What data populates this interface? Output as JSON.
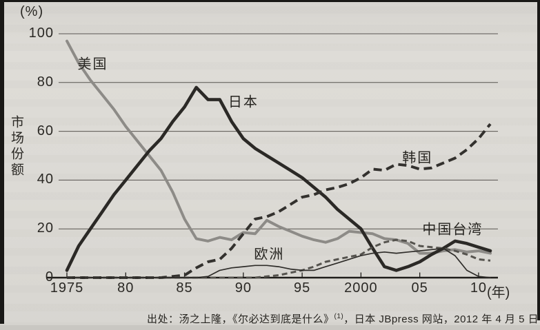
{
  "page": {
    "caption": {
      "prefix": "出处：汤之上隆，《尔必达到底是什么》",
      "superscript": "(1)",
      "suffix": "，日本 JBpress 网站，2012 年 4 月 5 日"
    }
  },
  "chart_data": {
    "type": "line",
    "title": "",
    "ylabel": "市场份额",
    "y_unit_label": "(%)",
    "x_unit_label": "(年)",
    "ylim": [
      0,
      100
    ],
    "xlim": [
      1975,
      2011
    ],
    "grid": "horizontal",
    "legend_position": "inline-labels-on-lines",
    "yticks": [
      0,
      20,
      40,
      60,
      80,
      100
    ],
    "xticks": [
      {
        "year": 1975,
        "label": "1975"
      },
      {
        "year": 1980,
        "label": "80"
      },
      {
        "year": 1985,
        "label": "85"
      },
      {
        "year": 1990,
        "label": "90"
      },
      {
        "year": 1995,
        "label": "95"
      },
      {
        "year": 2000,
        "label": "2000"
      },
      {
        "year": 2005,
        "label": "05"
      },
      {
        "year": 2010,
        "label": "10"
      }
    ],
    "x": [
      1975,
      1976,
      1977,
      1978,
      1979,
      1980,
      1981,
      1982,
      1983,
      1984,
      1985,
      1986,
      1987,
      1988,
      1989,
      1990,
      1991,
      1992,
      1993,
      1994,
      1995,
      1996,
      1997,
      1998,
      1999,
      2000,
      2001,
      2002,
      2003,
      2004,
      2005,
      2006,
      2007,
      2008,
      2009,
      2010,
      2011
    ],
    "series": [
      {
        "id": "us",
        "name": "美国",
        "line_style": "solid",
        "color": "#8d8b87",
        "stroke_width": 4,
        "label": {
          "x": 1977.2,
          "y": 88
        },
        "values": [
          97,
          88,
          81,
          75,
          69,
          62,
          56,
          50,
          44,
          35,
          24,
          16,
          15,
          16.5,
          15.5,
          18.5,
          18,
          23.5,
          21,
          19,
          17,
          15.5,
          14.5,
          16,
          19,
          18.5,
          18,
          16,
          15.5,
          14,
          10,
          10,
          11,
          11.5,
          10.5,
          11,
          10
        ]
      },
      {
        "id": "japan",
        "name": "日本",
        "line_style": "solid",
        "color": "#2b2926",
        "stroke_width": 4.6,
        "label": {
          "x": 1990,
          "y": 72.5
        },
        "values": [
          3,
          13,
          20,
          27,
          34,
          40,
          46,
          52,
          57,
          64,
          70,
          78,
          73,
          73,
          64,
          57,
          53,
          50,
          47,
          44,
          41,
          37,
          33,
          28,
          24,
          20,
          12,
          4.5,
          3,
          4.5,
          6.5,
          9.5,
          12,
          15,
          14,
          12.5,
          11
        ]
      },
      {
        "id": "korea",
        "name": "韩国",
        "line_style": "dashed",
        "color": "#33312e",
        "stroke_width": 4,
        "label": {
          "x": 2004.8,
          "y": 49.7
        },
        "values": [
          0,
          0,
          0,
          0,
          0,
          0,
          0,
          0,
          0,
          0.5,
          1,
          4,
          6.5,
          7.5,
          12,
          18,
          24,
          25,
          27,
          30,
          33,
          34,
          36,
          37,
          38.5,
          41,
          44.5,
          44,
          46.5,
          46,
          44.5,
          45,
          47,
          49,
          52.5,
          57,
          63
        ]
      },
      {
        "id": "taiwan",
        "name": "中国台湾",
        "line_style": "dashed-short",
        "color": "#55534e",
        "stroke_width": 3,
        "label": {
          "x": 2007.8,
          "y": 20.3
        },
        "values": [
          0,
          0,
          0,
          0,
          0,
          0,
          0,
          0,
          0,
          0,
          0,
          0,
          0,
          0,
          0,
          0,
          0,
          0.5,
          1,
          2,
          3,
          4.5,
          6.5,
          7.5,
          8.5,
          9.5,
          12.5,
          14.5,
          15.5,
          15,
          13,
          12.5,
          12,
          11,
          9.5,
          7.5,
          7
        ]
      },
      {
        "id": "europe",
        "name": "欧洲",
        "line_style": "solid",
        "color": "#2e2c29",
        "stroke_width": 1.7,
        "label": {
          "x": 1992.2,
          "y": 10.2
        },
        "values": [
          0,
          0,
          0,
          0,
          0,
          0,
          0,
          0,
          0,
          0,
          0,
          0,
          0.5,
          3,
          4,
          4.5,
          5,
          5,
          4.5,
          3.5,
          3,
          3,
          4.5,
          6,
          7.5,
          9,
          10,
          10.5,
          10,
          10.5,
          11,
          11.5,
          12,
          9,
          3,
          0.5,
          0
        ]
      }
    ]
  }
}
